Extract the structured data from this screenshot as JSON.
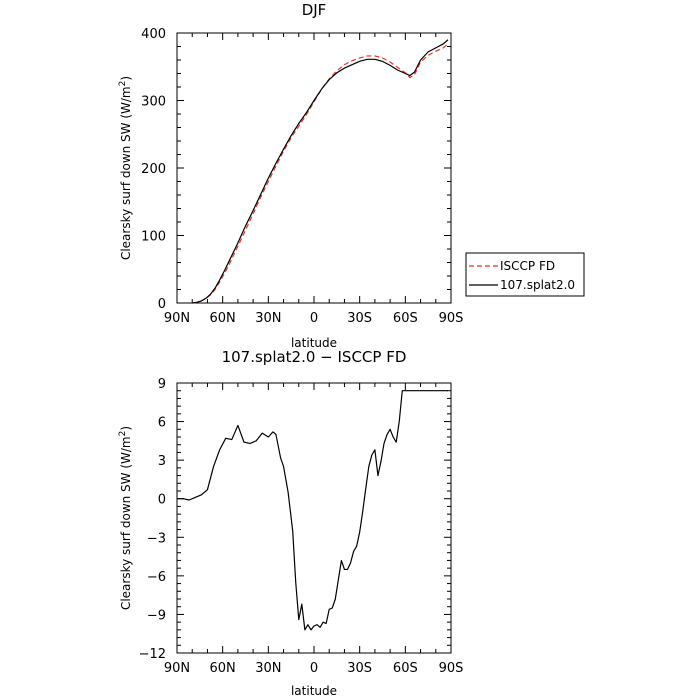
{
  "chart_data": [
    {
      "type": "line",
      "title": "DJF",
      "xlabel": "latitude",
      "ylabel_main": "Clearsky surf down SW (W/m",
      "ylabel_sup": "2",
      "ylabel_tail": ")",
      "xlim": [
        -90,
        90
      ],
      "ylim": [
        0,
        400
      ],
      "x_ticks": [
        -90,
        -60,
        -30,
        0,
        30,
        60,
        90
      ],
      "x_tick_labels": [
        "90N",
        "60N",
        "30N",
        "0",
        "30S",
        "60S",
        "90S"
      ],
      "y_ticks": [
        0,
        100,
        200,
        300,
        400
      ],
      "y_tick_labels": [
        "0",
        "100",
        "200",
        "300",
        "400"
      ],
      "legend": [
        {
          "label": "ISCCP FD",
          "color": "#e8332a",
          "dash": "dashed"
        },
        {
          "label": "107.splat2.0",
          "color": "#000000",
          "dash": "solid"
        }
      ],
      "series": [
        {
          "name": "ISCCP FD",
          "color": "#e8332a",
          "dash": "dashed",
          "x": [
            -80,
            -77,
            -74,
            -71,
            -68,
            -65,
            -62,
            -59,
            -56,
            -53,
            -50,
            -45,
            -40,
            -35,
            -30,
            -25,
            -20,
            -15,
            -10,
            -5,
            0,
            5,
            10,
            15,
            20,
            25,
            30,
            35,
            40,
            45,
            50,
            55,
            60,
            63,
            66,
            70,
            75,
            80,
            85,
            88
          ],
          "y": [
            0,
            1,
            3,
            7,
            12,
            20,
            31,
            43,
            56,
            70,
            84,
            108,
            132,
            157,
            180,
            203,
            225,
            245,
            262,
            279,
            298,
            317,
            332,
            344,
            353,
            359,
            363,
            366,
            366,
            363,
            357,
            349,
            341,
            334,
            338,
            357,
            367,
            373,
            378,
            384
          ]
        },
        {
          "name": "107.splat2.0",
          "color": "#000000",
          "dash": "solid",
          "x": [
            -80,
            -77,
            -74,
            -71,
            -68,
            -65,
            -62,
            -59,
            -56,
            -53,
            -50,
            -45,
            -40,
            -35,
            -30,
            -25,
            -20,
            -15,
            -10,
            -5,
            0,
            5,
            10,
            15,
            20,
            25,
            30,
            35,
            40,
            45,
            50,
            55,
            60,
            63,
            66,
            70,
            75,
            80,
            85,
            88
          ],
          "y": [
            0,
            1,
            3,
            7,
            13,
            22,
            34,
            47,
            61,
            75,
            89,
            114,
            137,
            161,
            185,
            207,
            228,
            248,
            266,
            282,
            300,
            317,
            331,
            341,
            348,
            353,
            358,
            361,
            361,
            358,
            352,
            345,
            340,
            337,
            342,
            360,
            372,
            378,
            384,
            390
          ]
        }
      ]
    },
    {
      "type": "line",
      "title": "107.splat2.0 − ISCCP FD",
      "xlabel": "latitude",
      "ylabel_main": "Clearsky surf down SW (W/m",
      "ylabel_sup": "2",
      "ylabel_tail": ")",
      "xlim": [
        -90,
        90
      ],
      "ylim": [
        -12,
        9
      ],
      "x_ticks": [
        -90,
        -60,
        -30,
        0,
        30,
        60,
        90
      ],
      "x_tick_labels": [
        "90N",
        "60N",
        "30N",
        "0",
        "30S",
        "60S",
        "90S"
      ],
      "y_ticks": [
        -12,
        -9,
        -6,
        -3,
        0,
        3,
        6,
        9
      ],
      "y_tick_labels": [
        "−12",
        "−9",
        "−6",
        "−3",
        "0",
        "3",
        "6",
        "9"
      ],
      "series": [
        {
          "name": "107.splat2.0 − ISCCP FD",
          "color": "#000000",
          "dash": "solid",
          "x": [
            -90,
            -86,
            -82,
            -78,
            -74,
            -70,
            -66,
            -62,
            -58,
            -54,
            -50,
            -46,
            -42,
            -38,
            -34,
            -30,
            -27,
            -25,
            -22,
            -20,
            -17,
            -14,
            -12,
            -10,
            -8,
            -6,
            -4,
            -2,
            0,
            2,
            4,
            6,
            8,
            10,
            12,
            14,
            16,
            18,
            20,
            22,
            24,
            26,
            28,
            30,
            32,
            34,
            36,
            38,
            40,
            42,
            44,
            46,
            48,
            50,
            52,
            54,
            56,
            58,
            60,
            62,
            64,
            66,
            68,
            70,
            72,
            74,
            76,
            78,
            80,
            82,
            84,
            86,
            88
          ],
          "y": [
            0.0,
            0.0,
            -0.1,
            0.1,
            0.3,
            0.7,
            2.5,
            3.8,
            4.7,
            4.6,
            5.7,
            4.4,
            4.3,
            4.5,
            5.1,
            4.8,
            5.2,
            5.0,
            3.2,
            2.5,
            0.5,
            -2.5,
            -6.5,
            -9.4,
            -8.2,
            -10.2,
            -9.8,
            -10.2,
            -9.9,
            -9.8,
            -10.0,
            -9.6,
            -9.7,
            -8.6,
            -8.5,
            -7.8,
            -6.3,
            -4.8,
            -5.5,
            -5.5,
            -5.0,
            -4.1,
            -3.7,
            -2.6,
            -1.0,
            0.8,
            2.5,
            3.4,
            3.8,
            1.8,
            2.9,
            4.3,
            5.0,
            5.4,
            4.8,
            4.4,
            6.0,
            8.4,
            8.4,
            8.4,
            8.4,
            8.4,
            8.4,
            8.4,
            8.4,
            8.4,
            8.4,
            8.4,
            8.4,
            8.4,
            8.4,
            8.4,
            8.4
          ]
        }
      ]
    }
  ]
}
